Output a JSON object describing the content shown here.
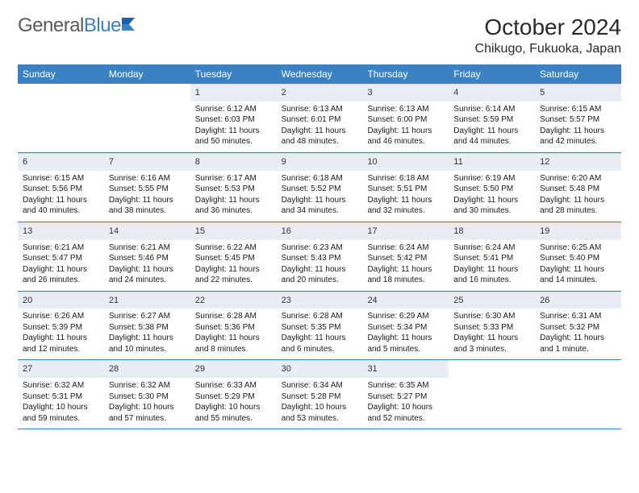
{
  "logo": {
    "part1": "General",
    "part2": "Blue"
  },
  "title": "October 2024",
  "location": "Chikugo, Fukuoka, Japan",
  "colors": {
    "header_bg": "#3b82c4",
    "daynum_bg": "#e8eef4",
    "row_border": "#3b82c4",
    "text": "#1a1a1a",
    "logo_gray": "#5a5a5a",
    "logo_blue": "#3b7fc4"
  },
  "weekdays": [
    "Sunday",
    "Monday",
    "Tuesday",
    "Wednesday",
    "Thursday",
    "Friday",
    "Saturday"
  ],
  "weeks": [
    [
      null,
      null,
      {
        "n": "1",
        "sr": "6:12 AM",
        "ss": "6:03 PM",
        "dl": "11 hours and 50 minutes."
      },
      {
        "n": "2",
        "sr": "6:13 AM",
        "ss": "6:01 PM",
        "dl": "11 hours and 48 minutes."
      },
      {
        "n": "3",
        "sr": "6:13 AM",
        "ss": "6:00 PM",
        "dl": "11 hours and 46 minutes."
      },
      {
        "n": "4",
        "sr": "6:14 AM",
        "ss": "5:59 PM",
        "dl": "11 hours and 44 minutes."
      },
      {
        "n": "5",
        "sr": "6:15 AM",
        "ss": "5:57 PM",
        "dl": "11 hours and 42 minutes."
      }
    ],
    [
      {
        "n": "6",
        "sr": "6:15 AM",
        "ss": "5:56 PM",
        "dl": "11 hours and 40 minutes."
      },
      {
        "n": "7",
        "sr": "6:16 AM",
        "ss": "5:55 PM",
        "dl": "11 hours and 38 minutes."
      },
      {
        "n": "8",
        "sr": "6:17 AM",
        "ss": "5:53 PM",
        "dl": "11 hours and 36 minutes."
      },
      {
        "n": "9",
        "sr": "6:18 AM",
        "ss": "5:52 PM",
        "dl": "11 hours and 34 minutes."
      },
      {
        "n": "10",
        "sr": "6:18 AM",
        "ss": "5:51 PM",
        "dl": "11 hours and 32 minutes."
      },
      {
        "n": "11",
        "sr": "6:19 AM",
        "ss": "5:50 PM",
        "dl": "11 hours and 30 minutes."
      },
      {
        "n": "12",
        "sr": "6:20 AM",
        "ss": "5:48 PM",
        "dl": "11 hours and 28 minutes."
      }
    ],
    [
      {
        "n": "13",
        "sr": "6:21 AM",
        "ss": "5:47 PM",
        "dl": "11 hours and 26 minutes."
      },
      {
        "n": "14",
        "sr": "6:21 AM",
        "ss": "5:46 PM",
        "dl": "11 hours and 24 minutes."
      },
      {
        "n": "15",
        "sr": "6:22 AM",
        "ss": "5:45 PM",
        "dl": "11 hours and 22 minutes."
      },
      {
        "n": "16",
        "sr": "6:23 AM",
        "ss": "5:43 PM",
        "dl": "11 hours and 20 minutes."
      },
      {
        "n": "17",
        "sr": "6:24 AM",
        "ss": "5:42 PM",
        "dl": "11 hours and 18 minutes."
      },
      {
        "n": "18",
        "sr": "6:24 AM",
        "ss": "5:41 PM",
        "dl": "11 hours and 16 minutes."
      },
      {
        "n": "19",
        "sr": "6:25 AM",
        "ss": "5:40 PM",
        "dl": "11 hours and 14 minutes."
      }
    ],
    [
      {
        "n": "20",
        "sr": "6:26 AM",
        "ss": "5:39 PM",
        "dl": "11 hours and 12 minutes."
      },
      {
        "n": "21",
        "sr": "6:27 AM",
        "ss": "5:38 PM",
        "dl": "11 hours and 10 minutes."
      },
      {
        "n": "22",
        "sr": "6:28 AM",
        "ss": "5:36 PM",
        "dl": "11 hours and 8 minutes."
      },
      {
        "n": "23",
        "sr": "6:28 AM",
        "ss": "5:35 PM",
        "dl": "11 hours and 6 minutes."
      },
      {
        "n": "24",
        "sr": "6:29 AM",
        "ss": "5:34 PM",
        "dl": "11 hours and 5 minutes."
      },
      {
        "n": "25",
        "sr": "6:30 AM",
        "ss": "5:33 PM",
        "dl": "11 hours and 3 minutes."
      },
      {
        "n": "26",
        "sr": "6:31 AM",
        "ss": "5:32 PM",
        "dl": "11 hours and 1 minute."
      }
    ],
    [
      {
        "n": "27",
        "sr": "6:32 AM",
        "ss": "5:31 PM",
        "dl": "10 hours and 59 minutes."
      },
      {
        "n": "28",
        "sr": "6:32 AM",
        "ss": "5:30 PM",
        "dl": "10 hours and 57 minutes."
      },
      {
        "n": "29",
        "sr": "6:33 AM",
        "ss": "5:29 PM",
        "dl": "10 hours and 55 minutes."
      },
      {
        "n": "30",
        "sr": "6:34 AM",
        "ss": "5:28 PM",
        "dl": "10 hours and 53 minutes."
      },
      {
        "n": "31",
        "sr": "6:35 AM",
        "ss": "5:27 PM",
        "dl": "10 hours and 52 minutes."
      },
      null,
      null
    ]
  ],
  "labels": {
    "sunrise": "Sunrise:",
    "sunset": "Sunset:",
    "daylight": "Daylight:"
  }
}
